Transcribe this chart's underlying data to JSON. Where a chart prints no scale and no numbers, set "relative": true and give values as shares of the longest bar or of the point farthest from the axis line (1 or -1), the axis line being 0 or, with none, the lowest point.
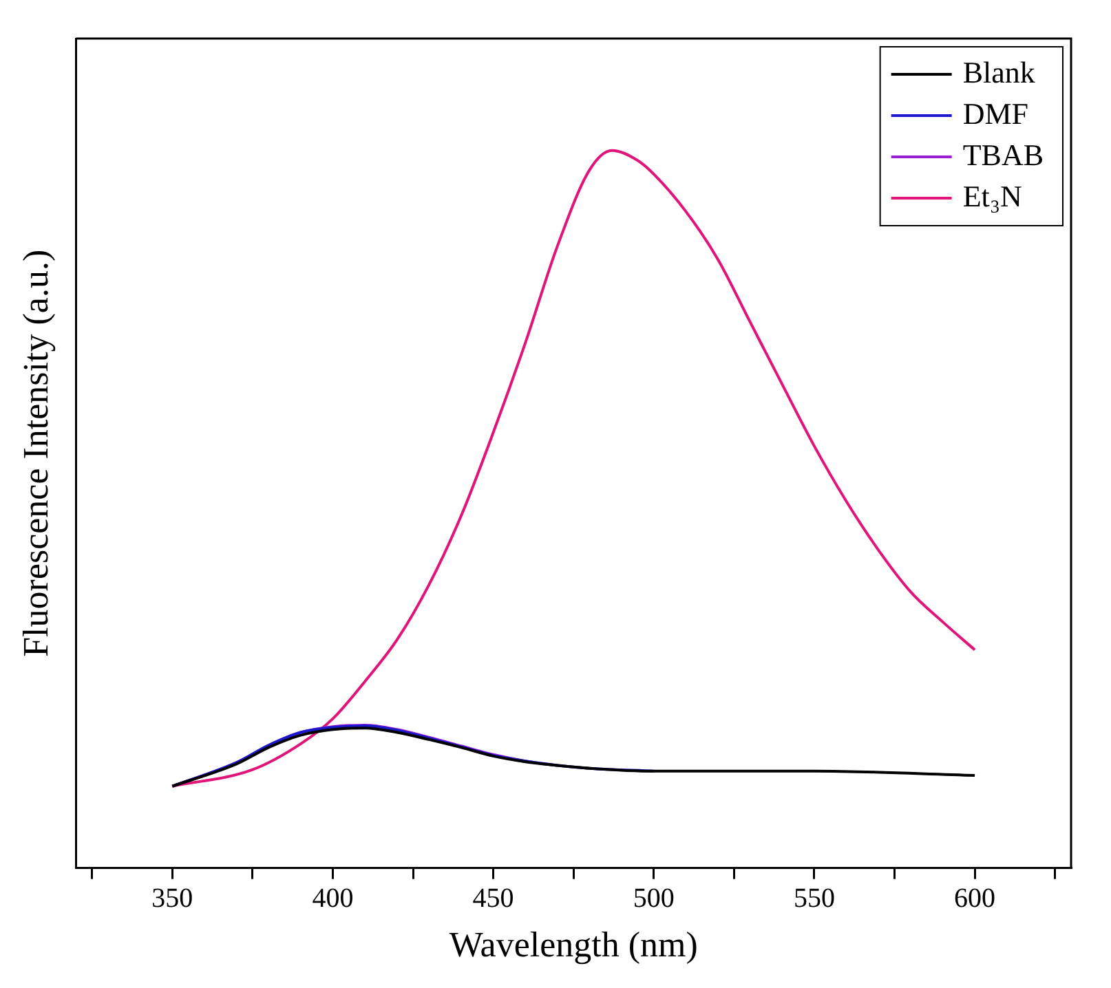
{
  "chart_data": {
    "type": "line",
    "xlabel": "Wavelength (nm)",
    "ylabel": "Fluorescence Intensity (a.u.)",
    "relative": true,
    "xlim": [
      320,
      630
    ],
    "xticks": [
      {
        "value": 325,
        "label": null
      },
      350,
      {
        "value": 375,
        "label": null
      },
      400,
      {
        "value": 425,
        "label": null
      },
      450,
      {
        "value": 475,
        "label": null
      },
      500,
      {
        "value": 525,
        "label": null
      },
      550,
      {
        "value": 575,
        "label": null
      },
      600,
      {
        "value": 625,
        "label": null
      }
    ],
    "grid": false,
    "legend": "top right",
    "marker": "none",
    "line_style": "solid",
    "series": [
      {
        "name": "Blank",
        "color": "#000000",
        "x": [
          350,
          370,
          380,
          390,
          400,
          410,
          420,
          430,
          440,
          450,
          460,
          470,
          480,
          500,
          550,
          600
        ],
        "values": [
          0.114,
          0.145,
          0.168,
          0.185,
          0.193,
          0.195,
          0.189,
          0.179,
          0.168,
          0.156,
          0.148,
          0.143,
          0.139,
          0.135,
          0.135,
          0.129
        ]
      },
      {
        "name": "DMF",
        "color": "#1a1acc",
        "x": [
          350,
          370,
          380,
          390,
          400,
          410,
          420,
          430,
          440,
          450,
          460,
          470,
          480,
          500
        ],
        "values": [
          0.114,
          0.147,
          0.171,
          0.189,
          0.196,
          0.198,
          0.192,
          0.181,
          0.169,
          0.157,
          0.149,
          0.143,
          0.139,
          0.135
        ]
      },
      {
        "name": "TBAB",
        "color": "#9a1fd6",
        "x": [
          350,
          370,
          380,
          390,
          400,
          410,
          420,
          430,
          440,
          450,
          460,
          470
        ],
        "values": [
          0.114,
          0.147,
          0.171,
          0.189,
          0.197,
          0.199,
          0.193,
          0.182,
          0.17,
          0.158,
          0.149,
          0.143
        ]
      },
      {
        "name": "Et₃N",
        "color": "#e0157a",
        "x": [
          350,
          375,
          390,
          400,
          410,
          420,
          430,
          440,
          450,
          460,
          470,
          480,
          487,
          495,
          500,
          510,
          520,
          530,
          540,
          550,
          560,
          570,
          580,
          590,
          600
        ],
        "values": [
          0.114,
          0.137,
          0.173,
          0.208,
          0.26,
          0.318,
          0.395,
          0.491,
          0.607,
          0.732,
          0.867,
          0.973,
          1,
          0.986,
          0.967,
          0.915,
          0.848,
          0.761,
          0.674,
          0.588,
          0.511,
          0.443,
          0.385,
          0.343,
          0.304
        ]
      }
    ]
  }
}
